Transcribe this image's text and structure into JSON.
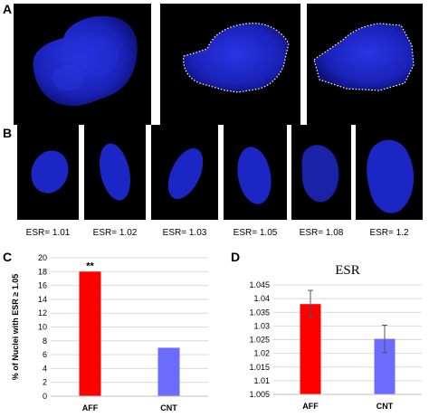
{
  "panels": {
    "a": "A",
    "b": "B",
    "c": "C",
    "d": "D"
  },
  "esr_labels": [
    "ESR= 1.01",
    "ESR= 1.02",
    "ESR= 1.03",
    "ESR= 1.05",
    "ESR= 1.08",
    "ESR= 1.2"
  ],
  "colors": {
    "nucleus": "#1f2bd8",
    "outline": "#ffffff",
    "aff_bar": "#ff0000",
    "cnt_bar": "#6b6bff",
    "grid": "#d9d9d9"
  },
  "chart_data": [
    {
      "type": "bar",
      "title": "",
      "ylabel": "% of Nuclei with ESR ≥ 1.05",
      "xlabel": "",
      "categories": [
        "AFF",
        "CNT"
      ],
      "values": [
        18,
        7
      ],
      "ylim": [
        0,
        20
      ],
      "yticks": [
        "0",
        "2",
        "4",
        "6",
        "8",
        "10",
        "12",
        "14",
        "16",
        "18",
        "20"
      ],
      "annotations": [
        {
          "category": "AFF",
          "text": "**"
        }
      ],
      "grid": true
    },
    {
      "type": "bar",
      "title": "ESR",
      "ylabel": "",
      "xlabel": "",
      "categories": [
        "AFF",
        "CNT"
      ],
      "values": [
        1.038,
        1.0253
      ],
      "error": [
        0.005,
        0.005
      ],
      "ylim": [
        1.005,
        1.045
      ],
      "yticks": [
        "1.005",
        "1.01",
        "1.015",
        "1.02",
        "1.025",
        "1.03",
        "1.035",
        "1.04",
        "1.045"
      ],
      "grid": true
    }
  ]
}
